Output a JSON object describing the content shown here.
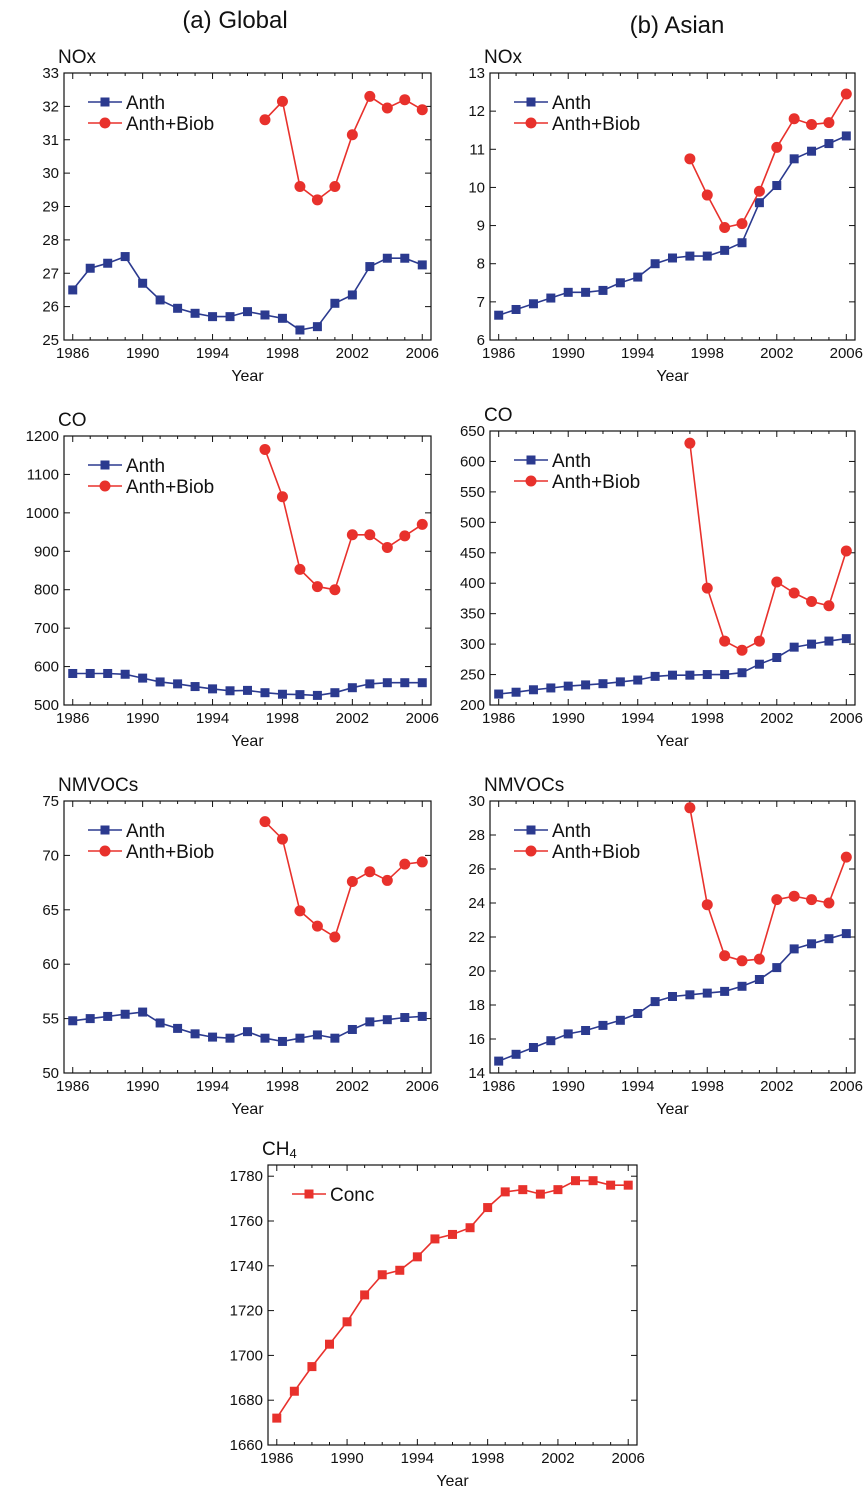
{
  "figure": {
    "col_left": "(a) Global",
    "col_right": "(b) Asian"
  },
  "chart_data": [
    {
      "id": "global_nox",
      "type": "line",
      "title": "NOx",
      "xlabel": "Year",
      "ylabel": "",
      "xlim": [
        1985.5,
        2006.5
      ],
      "ylim": [
        25,
        33
      ],
      "xticks": [
        1986,
        1990,
        1994,
        1998,
        2002,
        2006
      ],
      "yticks": [
        25,
        26,
        27,
        28,
        29,
        30,
        31,
        32,
        33
      ],
      "legend": "top-left",
      "series": [
        {
          "name": "Anth",
          "color": "#2b3a8f",
          "marker": "square",
          "x": [
            1986,
            1987,
            1988,
            1989,
            1990,
            1991,
            1992,
            1993,
            1994,
            1995,
            1996,
            1997,
            1998,
            1999,
            2000,
            2001,
            2002,
            2003,
            2004,
            2005,
            2006
          ],
          "y": [
            26.5,
            27.15,
            27.3,
            27.5,
            26.7,
            26.2,
            25.95,
            25.8,
            25.7,
            25.7,
            25.85,
            25.75,
            25.65,
            25.3,
            25.4,
            26.1,
            26.35,
            27.2,
            27.45,
            27.45,
            27.25
          ]
        },
        {
          "name": "Anth+Biob",
          "color": "#e8312c",
          "marker": "circle",
          "x": [
            1997,
            1998,
            1999,
            2000,
            2001,
            2002,
            2003,
            2004,
            2005,
            2006
          ],
          "y": [
            31.6,
            32.15,
            29.6,
            29.2,
            29.6,
            31.15,
            32.3,
            31.95,
            32.2,
            31.9
          ]
        }
      ]
    },
    {
      "id": "asian_nox",
      "type": "line",
      "title": "NOx",
      "xlabel": "Year",
      "ylabel": "",
      "xlim": [
        1985.5,
        2006.5
      ],
      "ylim": [
        6,
        13
      ],
      "xticks": [
        1986,
        1990,
        1994,
        1998,
        2002,
        2006
      ],
      "yticks": [
        6,
        7,
        8,
        9,
        10,
        11,
        12,
        13
      ],
      "legend": "top-left",
      "series": [
        {
          "name": "Anth",
          "color": "#2b3a8f",
          "marker": "square",
          "x": [
            1986,
            1987,
            1988,
            1989,
            1990,
            1991,
            1992,
            1993,
            1994,
            1995,
            1996,
            1997,
            1998,
            1999,
            2000,
            2001,
            2002,
            2003,
            2004,
            2005,
            2006
          ],
          "y": [
            6.65,
            6.8,
            6.95,
            7.1,
            7.25,
            7.25,
            7.3,
            7.5,
            7.65,
            8.0,
            8.15,
            8.2,
            8.2,
            8.35,
            8.55,
            9.6,
            10.05,
            10.75,
            10.95,
            11.15,
            11.35
          ]
        },
        {
          "name": "Anth+Biob",
          "color": "#e8312c",
          "marker": "circle",
          "x": [
            1997,
            1998,
            1999,
            2000,
            2001,
            2002,
            2003,
            2004,
            2005,
            2006
          ],
          "y": [
            10.75,
            9.8,
            8.95,
            9.05,
            9.9,
            11.05,
            11.8,
            11.65,
            11.7,
            12.45
          ]
        }
      ]
    },
    {
      "id": "global_co",
      "type": "line",
      "title": "CO",
      "xlabel": "Year",
      "ylabel": "",
      "xlim": [
        1985.5,
        2006.5
      ],
      "ylim": [
        500,
        1200
      ],
      "xticks": [
        1986,
        1990,
        1994,
        1998,
        2002,
        2006
      ],
      "yticks": [
        500,
        600,
        700,
        800,
        900,
        1000,
        1100,
        1200
      ],
      "legend": "top-left",
      "series": [
        {
          "name": "Anth",
          "color": "#2b3a8f",
          "marker": "square",
          "x": [
            1986,
            1987,
            1988,
            1989,
            1990,
            1991,
            1992,
            1993,
            1994,
            1995,
            1996,
            1997,
            1998,
            1999,
            2000,
            2001,
            2002,
            2003,
            2004,
            2005,
            2006
          ],
          "y": [
            582,
            582,
            582,
            580,
            570,
            560,
            555,
            548,
            542,
            537,
            538,
            532,
            528,
            527,
            525,
            532,
            545,
            555,
            558,
            558,
            558
          ]
        },
        {
          "name": "Anth+Biob",
          "color": "#e8312c",
          "marker": "circle",
          "x": [
            1997,
            1998,
            1999,
            2000,
            2001,
            2002,
            2003,
            2004,
            2005,
            2006
          ],
          "y": [
            1165,
            1042,
            853,
            808,
            800,
            943,
            943,
            910,
            940,
            970
          ]
        }
      ]
    },
    {
      "id": "asian_co",
      "type": "line",
      "title": "CO",
      "xlabel": "Year",
      "ylabel": "",
      "xlim": [
        1985.5,
        2006.5
      ],
      "ylim": [
        200,
        650
      ],
      "xticks": [
        1986,
        1990,
        1994,
        1998,
        2002,
        2006
      ],
      "yticks": [
        200,
        250,
        300,
        350,
        400,
        450,
        500,
        550,
        600,
        650
      ],
      "legend": "top-left",
      "series": [
        {
          "name": "Anth",
          "color": "#2b3a8f",
          "marker": "square",
          "x": [
            1986,
            1987,
            1988,
            1989,
            1990,
            1991,
            1992,
            1993,
            1994,
            1995,
            1996,
            1997,
            1998,
            1999,
            2000,
            2001,
            2002,
            2003,
            2004,
            2005,
            2006
          ],
          "y": [
            218,
            221,
            225,
            228,
            231,
            233,
            235,
            238,
            241,
            247,
            249,
            249,
            250,
            250,
            253,
            267,
            278,
            295,
            300,
            305,
            309
          ]
        },
        {
          "name": "Anth+Biob",
          "color": "#e8312c",
          "marker": "circle",
          "x": [
            1997,
            1998,
            1999,
            2000,
            2001,
            2002,
            2003,
            2004,
            2005,
            2006
          ],
          "y": [
            630,
            392,
            305,
            290,
            305,
            402,
            384,
            370,
            363,
            453
          ]
        }
      ]
    },
    {
      "id": "global_nmvocs",
      "type": "line",
      "title": "NMVOCs",
      "xlabel": "Year",
      "ylabel": "",
      "xlim": [
        1985.5,
        2006.5
      ],
      "ylim": [
        50,
        75
      ],
      "xticks": [
        1986,
        1990,
        1994,
        1998,
        2002,
        2006
      ],
      "yticks": [
        50,
        55,
        60,
        65,
        70,
        75
      ],
      "legend": "top-left",
      "series": [
        {
          "name": "Anth",
          "color": "#2b3a8f",
          "marker": "square",
          "x": [
            1986,
            1987,
            1988,
            1989,
            1990,
            1991,
            1992,
            1993,
            1994,
            1995,
            1996,
            1997,
            1998,
            1999,
            2000,
            2001,
            2002,
            2003,
            2004,
            2005,
            2006
          ],
          "y": [
            54.8,
            55.0,
            55.2,
            55.4,
            55.6,
            54.6,
            54.1,
            53.6,
            53.3,
            53.2,
            53.8,
            53.2,
            52.9,
            53.2,
            53.5,
            53.2,
            54.0,
            54.7,
            54.9,
            55.1,
            55.2
          ]
        },
        {
          "name": "Anth+Biob",
          "color": "#e8312c",
          "marker": "circle",
          "x": [
            1997,
            1998,
            1999,
            2000,
            2001,
            2002,
            2003,
            2004,
            2005,
            2006
          ],
          "y": [
            73.1,
            71.5,
            64.9,
            63.5,
            62.5,
            67.6,
            68.5,
            67.7,
            69.2,
            69.4
          ]
        }
      ]
    },
    {
      "id": "asian_nmvocs",
      "type": "line",
      "title": "NMVOCs",
      "xlabel": "Year",
      "ylabel": "",
      "xlim": [
        1985.5,
        2006.5
      ],
      "ylim": [
        14,
        30
      ],
      "xticks": [
        1986,
        1990,
        1994,
        1998,
        2002,
        2006
      ],
      "yticks": [
        14,
        16,
        18,
        20,
        22,
        24,
        26,
        28,
        30
      ],
      "legend": "top-left",
      "series": [
        {
          "name": "Anth",
          "color": "#2b3a8f",
          "marker": "square",
          "x": [
            1986,
            1987,
            1988,
            1989,
            1990,
            1991,
            1992,
            1993,
            1994,
            1995,
            1996,
            1997,
            1998,
            1999,
            2000,
            2001,
            2002,
            2003,
            2004,
            2005,
            2006
          ],
          "y": [
            14.7,
            15.1,
            15.5,
            15.9,
            16.3,
            16.5,
            16.8,
            17.1,
            17.5,
            18.2,
            18.5,
            18.6,
            18.7,
            18.8,
            19.1,
            19.5,
            20.2,
            21.3,
            21.6,
            21.9,
            22.2
          ]
        },
        {
          "name": "Anth+Biob",
          "color": "#e8312c",
          "marker": "circle",
          "x": [
            1997,
            1998,
            1999,
            2000,
            2001,
            2002,
            2003,
            2004,
            2005,
            2006
          ],
          "y": [
            29.6,
            23.9,
            20.9,
            20.6,
            20.7,
            24.2,
            24.4,
            24.2,
            24.0,
            26.7
          ]
        }
      ]
    },
    {
      "id": "ch4",
      "type": "line",
      "title": "CH4",
      "xlabel": "Year",
      "ylabel": "",
      "xlim": [
        1985.5,
        2006.5
      ],
      "ylim": [
        1660,
        1785
      ],
      "xticks": [
        1986,
        1990,
        1994,
        1998,
        2002,
        2006
      ],
      "yticks": [
        1660,
        1680,
        1700,
        1720,
        1740,
        1760,
        1780
      ],
      "legend": "top-left",
      "series": [
        {
          "name": "Conc",
          "color": "#e8312c",
          "marker": "square",
          "x": [
            1986,
            1987,
            1988,
            1989,
            1990,
            1991,
            1992,
            1993,
            1994,
            1995,
            1996,
            1997,
            1998,
            1999,
            2000,
            2001,
            2002,
            2003,
            2004,
            2005,
            2006
          ],
          "y": [
            1672,
            1684,
            1695,
            1705,
            1715,
            1727,
            1736,
            1738,
            1744,
            1752,
            1754,
            1757,
            1766,
            1773,
            1774,
            1772,
            1774,
            1778,
            1778,
            1776,
            1776
          ]
        }
      ]
    }
  ]
}
